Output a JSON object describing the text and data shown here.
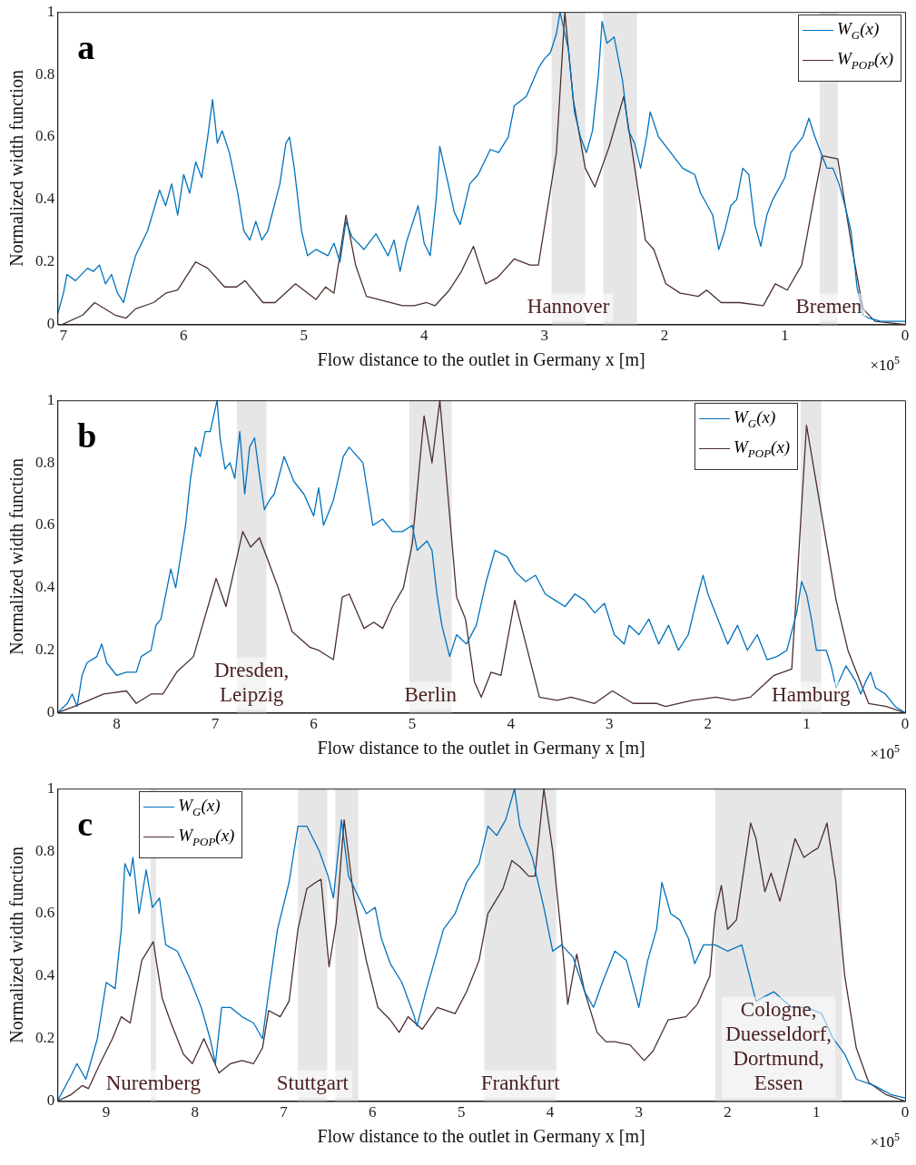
{
  "chart_data": [
    {
      "type": "line",
      "xlabel": "Flow distance to the outlet in Germany x [m]",
      "ylabel": "Normalized width function",
      "xlim": [
        7.05,
        0
      ],
      "xticks": [
        7,
        6,
        5,
        4,
        3,
        2,
        1,
        0
      ],
      "ylim": [
        0,
        1
      ],
      "yticks": [
        0,
        0.2,
        0.4,
        0.6,
        0.8,
        1
      ],
      "grid": false,
      "legend": "top right",
      "series": [
        {
          "name": "W$_{G}$(x)",
          "color": "#0072bd",
          "x": [
            7.05,
            7.0,
            6.97,
            6.9,
            6.8,
            6.75,
            6.7,
            6.65,
            6.6,
            6.55,
            6.5,
            6.45,
            6.4,
            6.3,
            6.2,
            6.15,
            6.1,
            6.05,
            6.0,
            5.95,
            5.9,
            5.85,
            5.8,
            5.76,
            5.72,
            5.68,
            5.62,
            5.55,
            5.5,
            5.45,
            5.4,
            5.35,
            5.3,
            5.2,
            5.15,
            5.12,
            5.08,
            5.02,
            4.97,
            4.9,
            4.8,
            4.75,
            4.7,
            4.65,
            4.6,
            4.5,
            4.4,
            4.3,
            4.25,
            4.2,
            4.15,
            4.05,
            4.0,
            3.95,
            3.9,
            3.87,
            3.8,
            3.75,
            3.7,
            3.62,
            3.55,
            3.45,
            3.38,
            3.3,
            3.25,
            3.15,
            3.05,
            3.0,
            2.95,
            2.9,
            2.87,
            2.8,
            2.75,
            2.7,
            2.65,
            2.6,
            2.55,
            2.52,
            2.48,
            2.42,
            2.35,
            2.3,
            2.25,
            2.2,
            2.15,
            2.12,
            2.05,
            1.95,
            1.85,
            1.75,
            1.7,
            1.6,
            1.55,
            1.5,
            1.45,
            1.4,
            1.35,
            1.3,
            1.25,
            1.2,
            1.15,
            1.1,
            1.0,
            0.95,
            0.85,
            0.8,
            0.75,
            0.7,
            0.65,
            0.6,
            0.55,
            0.5,
            0.45,
            0.4,
            0.35,
            0.3,
            0.2,
            0.1,
            0
          ],
          "values": [
            0.03,
            0.1,
            0.16,
            0.14,
            0.18,
            0.17,
            0.19,
            0.13,
            0.16,
            0.1,
            0.07,
            0.15,
            0.22,
            0.3,
            0.43,
            0.38,
            0.45,
            0.35,
            0.48,
            0.42,
            0.52,
            0.47,
            0.6,
            0.72,
            0.58,
            0.62,
            0.55,
            0.42,
            0.3,
            0.27,
            0.33,
            0.27,
            0.3,
            0.45,
            0.58,
            0.6,
            0.5,
            0.3,
            0.22,
            0.24,
            0.22,
            0.26,
            0.2,
            0.33,
            0.28,
            0.24,
            0.29,
            0.22,
            0.27,
            0.17,
            0.26,
            0.38,
            0.26,
            0.22,
            0.4,
            0.57,
            0.45,
            0.36,
            0.32,
            0.45,
            0.48,
            0.56,
            0.55,
            0.6,
            0.7,
            0.73,
            0.82,
            0.85,
            0.87,
            0.93,
            1.0,
            0.88,
            0.68,
            0.6,
            0.55,
            0.62,
            0.8,
            0.97,
            0.9,
            0.92,
            0.78,
            0.62,
            0.58,
            0.5,
            0.6,
            0.68,
            0.6,
            0.55,
            0.5,
            0.48,
            0.42,
            0.35,
            0.24,
            0.3,
            0.38,
            0.4,
            0.5,
            0.48,
            0.32,
            0.25,
            0.35,
            0.4,
            0.47,
            0.55,
            0.6,
            0.66,
            0.6,
            0.55,
            0.5,
            0.5,
            0.45,
            0.38,
            0.3,
            0.12,
            0.03,
            0.02,
            0.01,
            0.01,
            0.01
          ]
        },
        {
          "name": "W$_{POP}$(x)",
          "color": "#4d2f2f",
          "x": [
            7.01,
            6.84,
            6.74,
            6.57,
            6.48,
            6.4,
            6.25,
            6.15,
            6.05,
            5.9,
            5.8,
            5.66,
            5.56,
            5.49,
            5.34,
            5.24,
            5.07,
            4.9,
            4.82,
            4.75,
            4.65,
            4.57,
            4.48,
            4.18,
            4.08,
            3.98,
            3.91,
            3.79,
            3.69,
            3.59,
            3.49,
            3.39,
            3.25,
            3.12,
            3.05,
            2.9,
            2.83,
            2.76,
            2.66,
            2.58,
            2.46,
            2.34,
            2.24,
            2.16,
            2.09,
            1.99,
            1.87,
            1.72,
            1.65,
            1.53,
            1.38,
            1.18,
            1.08,
            0.98,
            0.86,
            0.76,
            0.69,
            0.56,
            0.44,
            0.35,
            0.25,
            0
          ],
          "values": [
            0,
            0.03,
            0.07,
            0.03,
            0.02,
            0.05,
            0.07,
            0.1,
            0.11,
            0.2,
            0.18,
            0.12,
            0.12,
            0.14,
            0.07,
            0.07,
            0.13,
            0.08,
            0.12,
            0.1,
            0.35,
            0.19,
            0.09,
            0.06,
            0.06,
            0.07,
            0.06,
            0.11,
            0.17,
            0.25,
            0.13,
            0.15,
            0.21,
            0.19,
            0.19,
            0.55,
            1.0,
            0.72,
            0.5,
            0.44,
            0.57,
            0.73,
            0.48,
            0.27,
            0.24,
            0.13,
            0.1,
            0.09,
            0.11,
            0.07,
            0.07,
            0.06,
            0.13,
            0.11,
            0.19,
            0.4,
            0.54,
            0.53,
            0.24,
            0.05,
            0.01,
            0
          ]
        }
      ],
      "bands": [
        {
          "axis": "x",
          "from": 2.94,
          "to": 2.66,
          "color": "#e6e6e6",
          "label": "Hannover"
        },
        {
          "axis": "x",
          "from": 2.51,
          "to": 2.23,
          "color": "#e6e6e6"
        },
        {
          "axis": "x",
          "from": 0.71,
          "to": 0.56,
          "color": "#e6e6e6",
          "label": "Bremen"
        }
      ],
      "annotations": [
        "a",
        "×10$^{5}$"
      ]
    },
    {
      "type": "line",
      "xlabel": "Flow distance to the outlet in Germany x [m]",
      "ylabel": "Normalized width function",
      "xlim": [
        8.6,
        0
      ],
      "xticks": [
        8,
        7,
        6,
        5,
        4,
        3,
        2,
        1,
        0
      ],
      "ylim": [
        0,
        1
      ],
      "yticks": [
        0,
        0.2,
        0.4,
        0.6,
        0.8,
        1
      ],
      "grid": false,
      "legend": "top right",
      "series": [
        {
          "name": "W$_{G}$(x)",
          "color": "#0072bd",
          "x": [
            8.6,
            8.5,
            8.45,
            8.4,
            8.35,
            8.3,
            8.2,
            8.15,
            8.1,
            8.0,
            7.9,
            7.8,
            7.75,
            7.65,
            7.6,
            7.55,
            7.5,
            7.45,
            7.4,
            7.35,
            7.3,
            7.25,
            7.2,
            7.15,
            7.1,
            7.05,
            6.98,
            6.95,
            6.9,
            6.85,
            6.8,
            6.75,
            6.7,
            6.65,
            6.6,
            6.55,
            6.5,
            6.45,
            6.4,
            6.3,
            6.25,
            6.2,
            6.1,
            6.0,
            5.95,
            5.9,
            5.8,
            5.7,
            5.64,
            5.5,
            5.45,
            5.4,
            5.3,
            5.2,
            5.1,
            5.0,
            4.95,
            4.85,
            4.8,
            4.75,
            4.7,
            4.62,
            4.55,
            4.45,
            4.35,
            4.25,
            4.16,
            4.04,
            3.95,
            3.85,
            3.75,
            3.65,
            3.55,
            3.45,
            3.35,
            3.25,
            3.15,
            3.05,
            2.95,
            2.85,
            2.8,
            2.7,
            2.6,
            2.5,
            2.4,
            2.3,
            2.2,
            2.1,
            2.05,
            2.0,
            1.9,
            1.8,
            1.7,
            1.6,
            1.5,
            1.4,
            1.3,
            1.2,
            1.1,
            1.05,
            1.0,
            0.95,
            0.9,
            0.8,
            0.75,
            0.7,
            0.6,
            0.5,
            0.45,
            0.4,
            0.35,
            0.3,
            0.2,
            0.1,
            0
          ],
          "values": [
            0,
            0.03,
            0.06,
            0.02,
            0.12,
            0.16,
            0.18,
            0.22,
            0.16,
            0.12,
            0.13,
            0.13,
            0.18,
            0.2,
            0.28,
            0.3,
            0.38,
            0.46,
            0.4,
            0.5,
            0.6,
            0.75,
            0.85,
            0.82,
            0.9,
            0.9,
            1.0,
            0.88,
            0.78,
            0.8,
            0.75,
            0.9,
            0.7,
            0.85,
            0.88,
            0.76,
            0.65,
            0.68,
            0.7,
            0.82,
            0.78,
            0.74,
            0.7,
            0.63,
            0.72,
            0.6,
            0.68,
            0.82,
            0.85,
            0.8,
            0.7,
            0.6,
            0.62,
            0.58,
            0.58,
            0.6,
            0.52,
            0.55,
            0.52,
            0.38,
            0.28,
            0.18,
            0.25,
            0.22,
            0.28,
            0.42,
            0.52,
            0.5,
            0.45,
            0.42,
            0.44,
            0.38,
            0.36,
            0.34,
            0.38,
            0.36,
            0.32,
            0.35,
            0.25,
            0.22,
            0.28,
            0.25,
            0.3,
            0.22,
            0.28,
            0.2,
            0.25,
            0.38,
            0.44,
            0.38,
            0.3,
            0.22,
            0.28,
            0.2,
            0.25,
            0.17,
            0.18,
            0.2,
            0.32,
            0.42,
            0.38,
            0.3,
            0.2,
            0.2,
            0.15,
            0.08,
            0.15,
            0.1,
            0.06,
            0.1,
            0.13,
            0.08,
            0.06,
            0.02,
            0
          ]
        },
        {
          "name": "W$_{POP}$(x)",
          "color": "#4d2f2f",
          "x": [
            8.6,
            8.43,
            8.13,
            7.9,
            7.8,
            7.65,
            7.53,
            7.39,
            7.22,
            6.99,
            6.89,
            6.72,
            6.64,
            6.55,
            6.36,
            6.22,
            6.04,
            5.95,
            5.8,
            5.71,
            5.64,
            5.49,
            5.39,
            5.3,
            5.2,
            5.09,
            5.0,
            4.88,
            4.8,
            4.72,
            4.55,
            4.46,
            4.37,
            4.3,
            4.2,
            4.1,
            3.96,
            3.71,
            3.53,
            3.39,
            3.15,
            2.97,
            2.76,
            2.52,
            2.43,
            2.16,
            1.92,
            1.74,
            1.57,
            1.33,
            1.15,
            1.0,
            0.7,
            0.58,
            0.37,
            0.19,
            0
          ],
          "values": [
            0,
            0.02,
            0.06,
            0.07,
            0.03,
            0.06,
            0.06,
            0.13,
            0.18,
            0.43,
            0.34,
            0.58,
            0.53,
            0.56,
            0.4,
            0.26,
            0.21,
            0.2,
            0.17,
            0.37,
            0.38,
            0.27,
            0.29,
            0.27,
            0.34,
            0.4,
            0.54,
            0.95,
            0.8,
            1.0,
            0.37,
            0.3,
            0.1,
            0.05,
            0.13,
            0.12,
            0.36,
            0.05,
            0.04,
            0.05,
            0.03,
            0.07,
            0.03,
            0.03,
            0.02,
            0.04,
            0.05,
            0.04,
            0.05,
            0.12,
            0.14,
            0.92,
            0.36,
            0.2,
            0.03,
            0.02,
            0
          ]
        }
      ],
      "bands": [
        {
          "axis": "x",
          "from": 6.78,
          "to": 6.48,
          "color": "#e6e6e6",
          "label": "Dresden,\nLeipzig"
        },
        {
          "axis": "x",
          "from": 5.03,
          "to": 4.6,
          "color": "#e6e6e6",
          "label": "Berlin"
        },
        {
          "axis": "x",
          "from": 1.06,
          "to": 0.85,
          "color": "#e6e6e6",
          "label": "Hamburg"
        }
      ],
      "annotations": [
        "b",
        "×10$^{5}$"
      ]
    },
    {
      "type": "line",
      "xlabel": "Flow distance to the outlet in Germany x [m]",
      "ylabel": "Normalized width function",
      "xlim": [
        9.55,
        0
      ],
      "xticks": [
        9,
        8,
        7,
        6,
        5,
        4,
        3,
        2,
        1,
        0
      ],
      "ylim": [
        0,
        1
      ],
      "yticks": [
        0,
        0.2,
        0.4,
        0.6,
        0.8,
        1
      ],
      "grid": false,
      "legend": "top left",
      "series": [
        {
          "name": "W$_{G}$(x)",
          "color": "#0072bd",
          "x": [
            9.55,
            9.4,
            9.33,
            9.23,
            9.1,
            9.0,
            8.9,
            8.83,
            8.79,
            8.73,
            8.7,
            8.63,
            8.55,
            8.48,
            8.4,
            8.33,
            8.2,
            8.07,
            7.93,
            7.83,
            7.77,
            7.7,
            7.6,
            7.47,
            7.34,
            7.24,
            7.17,
            7.07,
            6.94,
            6.84,
            6.74,
            6.6,
            6.5,
            6.44,
            6.35,
            6.27,
            6.17,
            6.07,
            5.97,
            5.9,
            5.8,
            5.67,
            5.54,
            5.5,
            5.4,
            5.3,
            5.2,
            5.07,
            4.94,
            4.8,
            4.7,
            4.6,
            4.5,
            4.4,
            4.34,
            4.2,
            4.07,
            3.97,
            3.87,
            3.74,
            3.61,
            3.51,
            3.41,
            3.27,
            3.14,
            3.0,
            2.9,
            2.8,
            2.74,
            2.64,
            2.54,
            2.44,
            2.37,
            2.27,
            2.14,
            2.0,
            1.84,
            1.68,
            1.48,
            1.28,
            1.11,
            0.94,
            0.81,
            0.68,
            0.55,
            0.35,
            0.15,
            0
          ],
          "values": [
            0,
            0.08,
            0.12,
            0.07,
            0.2,
            0.38,
            0.36,
            0.55,
            0.76,
            0.72,
            0.78,
            0.6,
            0.74,
            0.62,
            0.65,
            0.5,
            0.48,
            0.4,
            0.3,
            0.2,
            0.12,
            0.3,
            0.3,
            0.27,
            0.25,
            0.2,
            0.35,
            0.55,
            0.7,
            0.88,
            0.88,
            0.8,
            0.72,
            0.65,
            0.9,
            0.72,
            0.66,
            0.6,
            0.62,
            0.52,
            0.44,
            0.38,
            0.28,
            0.24,
            0.35,
            0.45,
            0.55,
            0.6,
            0.7,
            0.76,
            0.88,
            0.85,
            0.9,
            1.0,
            0.88,
            0.78,
            0.62,
            0.48,
            0.5,
            0.46,
            0.35,
            0.3,
            0.38,
            0.48,
            0.45,
            0.3,
            0.45,
            0.55,
            0.7,
            0.6,
            0.58,
            0.52,
            0.44,
            0.5,
            0.5,
            0.48,
            0.5,
            0.32,
            0.35,
            0.3,
            0.3,
            0.28,
            0.2,
            0.15,
            0.07,
            0.05,
            0.02,
            0.01
          ]
        },
        {
          "name": "W$_{POP}$(x)",
          "color": "#4d2f2f",
          "x": [
            9.55,
            9.4,
            9.27,
            9.2,
            9.07,
            8.93,
            8.83,
            8.73,
            8.6,
            8.47,
            8.37,
            8.27,
            8.13,
            8.03,
            7.9,
            7.73,
            7.6,
            7.47,
            7.34,
            7.24,
            7.17,
            7.04,
            6.94,
            6.84,
            6.74,
            6.64,
            6.58,
            6.49,
            6.41,
            6.32,
            6.21,
            6.07,
            5.94,
            5.8,
            5.7,
            5.6,
            5.44,
            5.27,
            5.07,
            4.94,
            4.8,
            4.7,
            4.53,
            4.43,
            4.34,
            4.24,
            4.17,
            4.07,
            3.97,
            3.88,
            3.8,
            3.7,
            3.61,
            3.47,
            3.37,
            3.27,
            3.1,
            2.94,
            2.84,
            2.67,
            2.47,
            2.34,
            2.2,
            2.14,
            2.07,
            2.0,
            1.9,
            1.74,
            1.68,
            1.58,
            1.51,
            1.41,
            1.24,
            1.14,
            1.04,
            0.98,
            0.88,
            0.78,
            0.68,
            0.55,
            0.41,
            0.21,
            0
          ],
          "values": [
            0,
            0.02,
            0.05,
            0.04,
            0.12,
            0.2,
            0.27,
            0.25,
            0.45,
            0.51,
            0.33,
            0.25,
            0.15,
            0.12,
            0.2,
            0.09,
            0.12,
            0.13,
            0.12,
            0.17,
            0.29,
            0.27,
            0.32,
            0.55,
            0.68,
            0.7,
            0.71,
            0.43,
            0.57,
            0.9,
            0.65,
            0.45,
            0.3,
            0.26,
            0.22,
            0.27,
            0.23,
            0.3,
            0.28,
            0.35,
            0.45,
            0.6,
            0.68,
            0.77,
            0.75,
            0.72,
            0.72,
            1.0,
            0.8,
            0.55,
            0.31,
            0.47,
            0.35,
            0.22,
            0.19,
            0.19,
            0.18,
            0.13,
            0.16,
            0.26,
            0.27,
            0.31,
            0.4,
            0.6,
            0.69,
            0.55,
            0.58,
            0.89,
            0.84,
            0.67,
            0.73,
            0.64,
            0.84,
            0.78,
            0.8,
            0.81,
            0.89,
            0.7,
            0.4,
            0.17,
            0.06,
            0.02,
            0
          ]
        }
      ],
      "bands": [
        {
          "axis": "x",
          "from": 8.5,
          "to": 8.44,
          "color": "#e6e6e6",
          "label": "Nuremberg"
        },
        {
          "axis": "x",
          "from": 6.84,
          "to": 6.51,
          "color": "#e6e6e6",
          "label": "Stuttgart"
        },
        {
          "axis": "x",
          "from": 6.42,
          "to": 6.16,
          "color": "#e6e6e6"
        },
        {
          "axis": "x",
          "from": 4.74,
          "to": 3.93,
          "color": "#e6e6e6",
          "label": "Frankfurt"
        },
        {
          "axis": "x",
          "from": 2.14,
          "to": 0.71,
          "color": "#e6e6e6",
          "label": "Cologne,\nDuesseldorf,\nDortmund,\nEssen"
        }
      ],
      "annotations": [
        "c",
        "×10$^{5}$"
      ]
    }
  ]
}
